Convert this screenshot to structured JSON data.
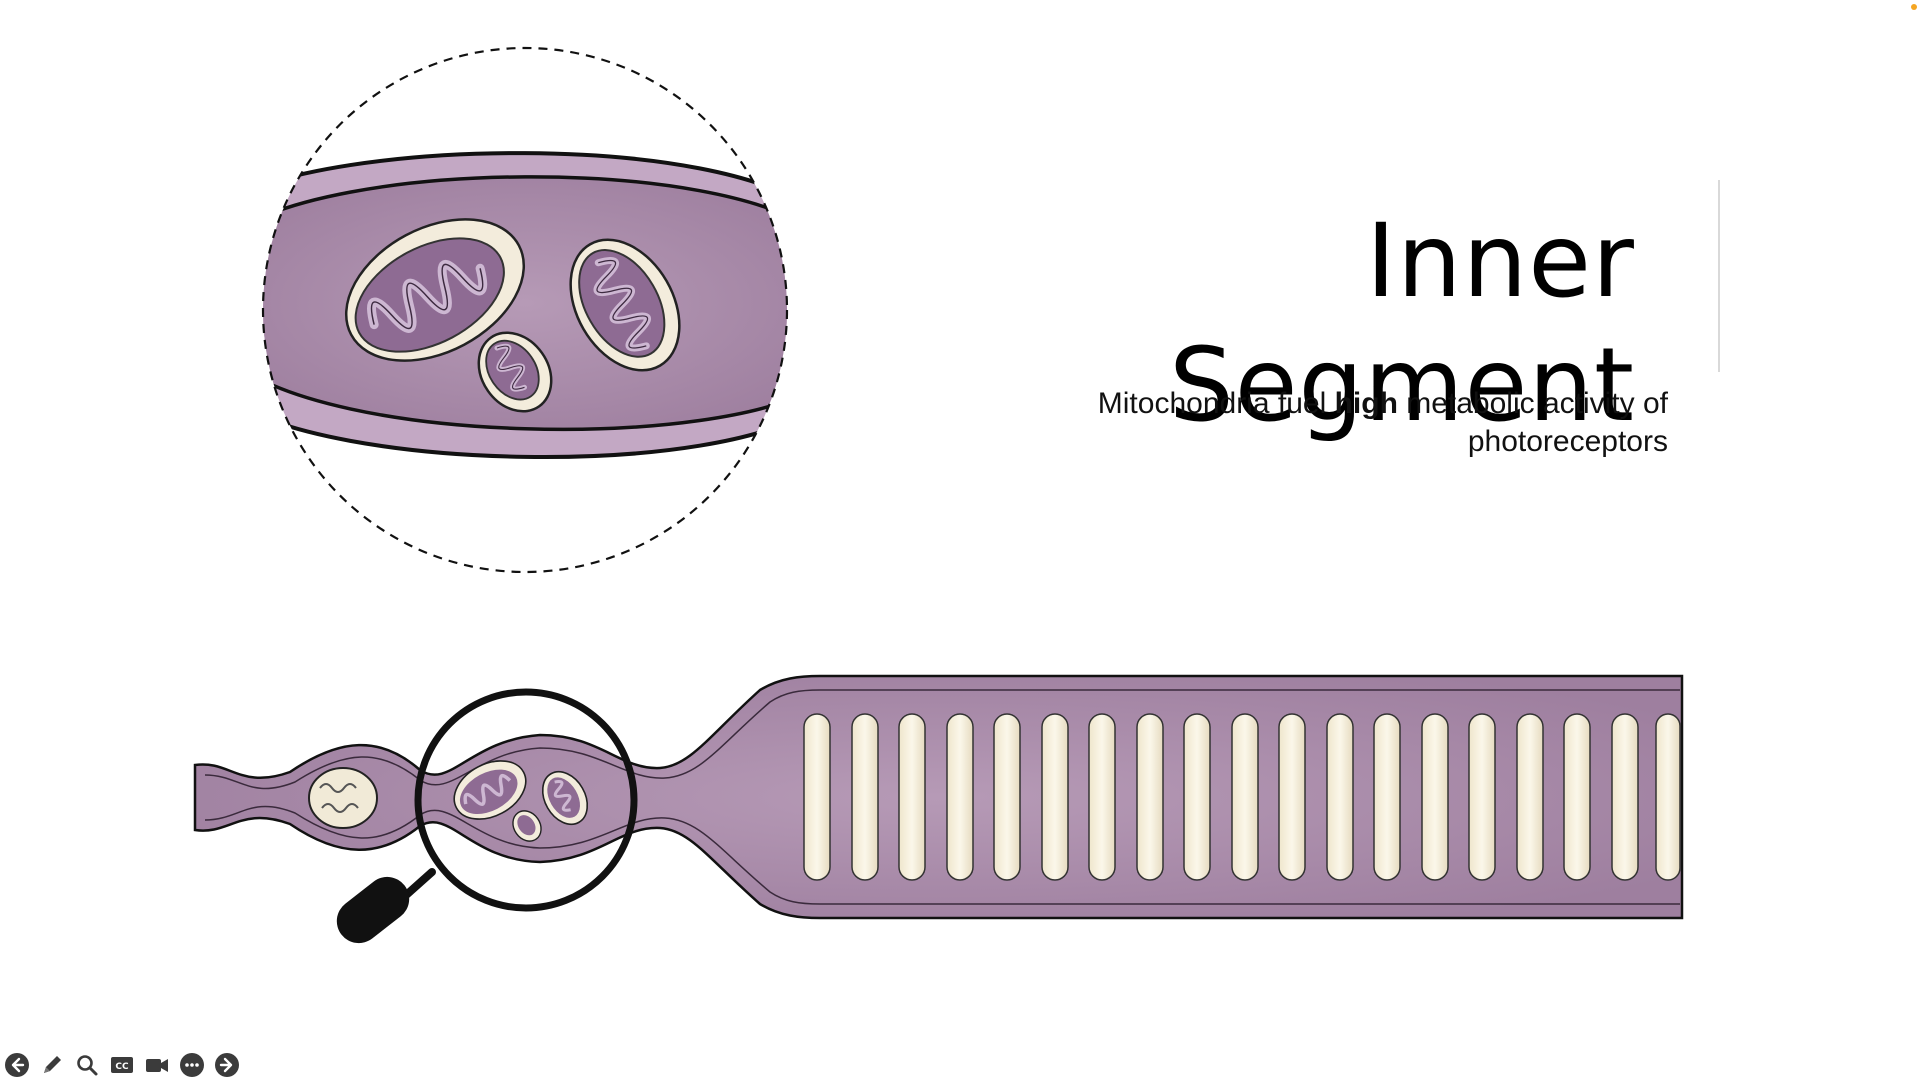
{
  "slide": {
    "title": "Inner Segment",
    "subtitle_pre": "Mitochondria fuel ",
    "subtitle_bold": "high",
    "subtitle_post": " metabolic activity of photoreceptors"
  },
  "colors": {
    "cell_fill": "#a98aa8",
    "cell_light": "#c2a6c3",
    "disc_fill": "#f5efdc",
    "mito_inner": "#8b6a8f",
    "outline": "#111111",
    "accent_dot": "#f5a623"
  },
  "toolbar": {
    "buttons": [
      {
        "name": "previous-slide-button",
        "icon": "arrow-left-icon"
      },
      {
        "name": "pen-tool-button",
        "icon": "pen-icon"
      },
      {
        "name": "zoom-button",
        "icon": "magnifier-icon"
      },
      {
        "name": "captions-button",
        "icon": "cc-icon"
      },
      {
        "name": "camera-button",
        "icon": "video-camera-icon"
      },
      {
        "name": "more-options-button",
        "icon": "ellipsis-icon"
      },
      {
        "name": "next-slide-button",
        "icon": "arrow-right-icon"
      }
    ]
  }
}
